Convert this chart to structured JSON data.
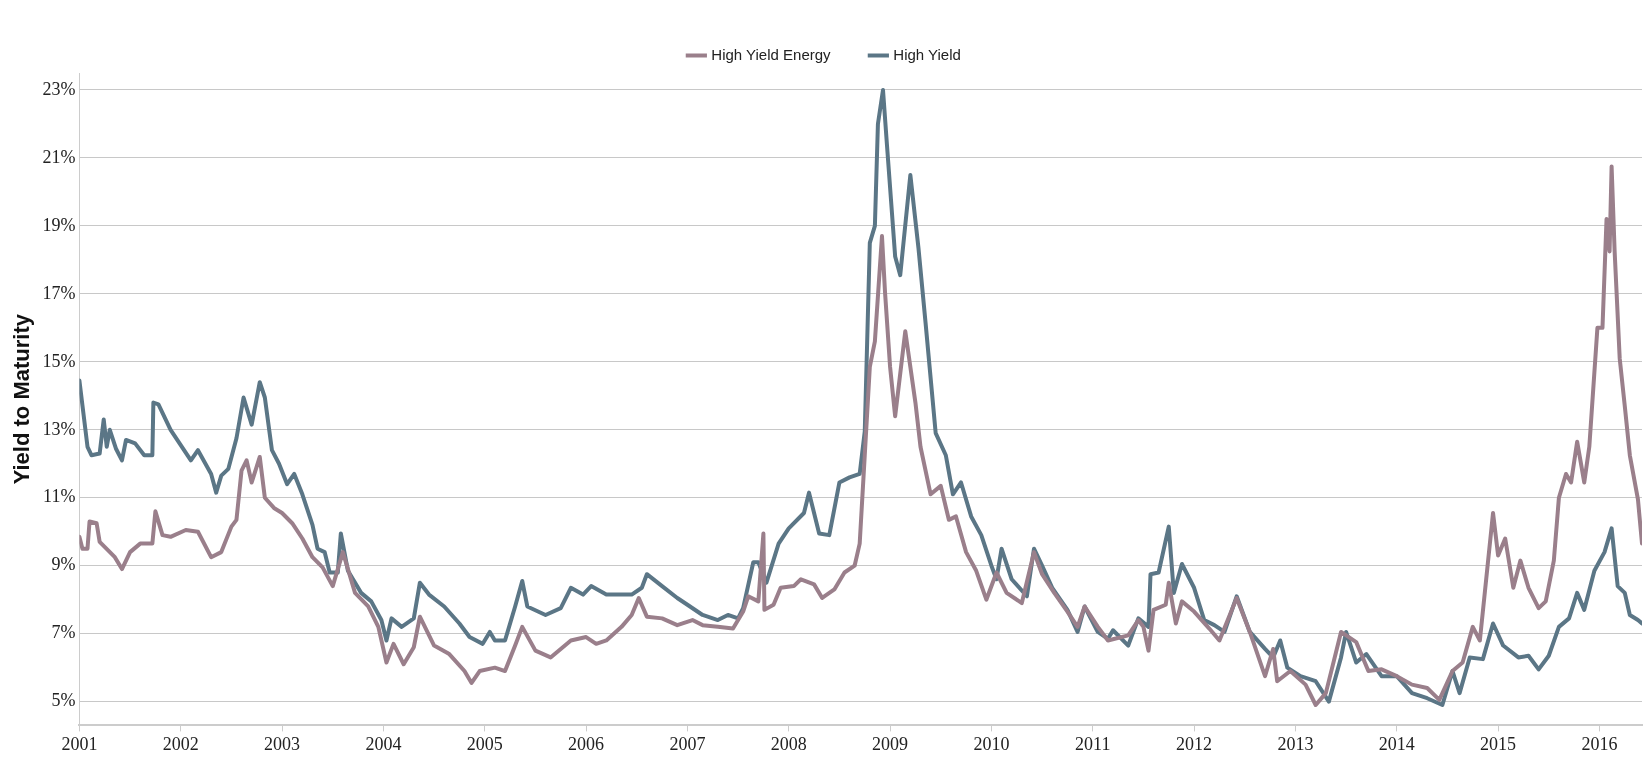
{
  "chart_data": {
    "type": "line",
    "ylabel": "Yield to Maturity",
    "legend": "top",
    "grid": "y",
    "marker": "none",
    "line_style": "solid",
    "xlim": [
      2001,
      2016.42
    ],
    "xticks": [
      2001,
      2002,
      2003,
      2004,
      2005,
      2006,
      2007,
      2008,
      2009,
      2010,
      2011,
      2012,
      2013,
      2014,
      2015,
      2016
    ],
    "ylim": [
      4.3,
      23.5
    ],
    "yticks": [
      {
        "value": 5,
        "label": "5%"
      },
      {
        "value": 7,
        "label": "7%"
      },
      {
        "value": 9,
        "label": "9%"
      },
      {
        "value": 11,
        "label": "11%"
      },
      {
        "value": 13,
        "label": "13%"
      },
      {
        "value": 15,
        "label": "15%"
      },
      {
        "value": 17,
        "label": "17%"
      },
      {
        "value": 19,
        "label": "19%"
      },
      {
        "value": 21,
        "label": "21%"
      },
      {
        "value": 23,
        "label": "23%"
      }
    ],
    "series": [
      {
        "name": "High Yield Energy",
        "color": "#9a7f8b",
        "x": [
          2001,
          2001.03,
          2001.08,
          2001.1,
          2001.17,
          2001.2,
          2001.35,
          2001.42,
          2001.5,
          2001.6,
          2001.72,
          2001.75,
          2001.82,
          2001.9,
          2002.05,
          2002.17,
          2002.3,
          2002.4,
          2002.5,
          2002.55,
          2002.6,
          2002.65,
          2002.7,
          2002.78,
          2002.83,
          2002.92,
          2003,
          2003.1,
          2003.2,
          2003.3,
          2003.4,
          2003.5,
          2003.6,
          2003.72,
          2003.85,
          2003.95,
          2004.03,
          2004.1,
          2004.2,
          2004.3,
          2004.36,
          2004.5,
          2004.65,
          2004.8,
          2004.87,
          2004.95,
          2005.1,
          2005.2,
          2005.3,
          2005.37,
          2005.5,
          2005.65,
          2005.85,
          2006,
          2006.1,
          2006.2,
          2006.35,
          2006.45,
          2006.52,
          2006.6,
          2006.75,
          2006.9,
          2007.05,
          2007.15,
          2007.3,
          2007.45,
          2007.55,
          2007.6,
          2007.7,
          2007.75,
          2007.76,
          2007.85,
          2007.92,
          2008.05,
          2008.12,
          2008.25,
          2008.33,
          2008.45,
          2008.55,
          2008.65,
          2008.7,
          2008.75,
          2008.8,
          2008.85,
          2008.92,
          2008.95,
          2009,
          2009.05,
          2009.15,
          2009.25,
          2009.3,
          2009.4,
          2009.5,
          2009.58,
          2009.65,
          2009.75,
          2009.85,
          2009.95,
          2010.05,
          2010.15,
          2010.3,
          2010.42,
          2010.5,
          2010.62,
          2010.75,
          2010.85,
          2010.92,
          2011.05,
          2011.15,
          2011.35,
          2011.45,
          2011.5,
          2011.55,
          2011.6,
          2011.72,
          2011.75,
          2011.82,
          2011.88,
          2012,
          2012.15,
          2012.25,
          2012.42,
          2012.55,
          2012.7,
          2012.78,
          2012.82,
          2012.95,
          2013.1,
          2013.2,
          2013.3,
          2013.45,
          2013.6,
          2013.72,
          2013.85,
          2014,
          2014.15,
          2014.3,
          2014.42,
          2014.55,
          2014.65,
          2014.75,
          2014.82,
          2014.95,
          2015,
          2015.07,
          2015.15,
          2015.22,
          2015.3,
          2015.4,
          2015.47,
          2015.55,
          2015.6,
          2015.67,
          2015.72,
          2015.78,
          2015.85,
          2015.9,
          2015.98,
          2016.03,
          2016.07,
          2016.1,
          2016.12,
          2016.15,
          2016.2,
          2016.25,
          2016.3,
          2016.38,
          2016.42
        ],
        "values": [
          9.85,
          9.5,
          9.5,
          10.3,
          10.25,
          9.7,
          9.25,
          8.9,
          9.4,
          9.65,
          9.65,
          10.6,
          9.9,
          9.85,
          10.05,
          10,
          9.25,
          9.4,
          10.15,
          10.35,
          11.8,
          12.1,
          11.45,
          12.2,
          11,
          10.7,
          10.55,
          10.25,
          9.8,
          9.25,
          8.95,
          8.4,
          9.4,
          8.2,
          7.8,
          7.2,
          6.15,
          6.7,
          6.1,
          6.6,
          7.5,
          6.65,
          6.4,
          5.9,
          5.55,
          5.9,
          6,
          5.9,
          6.65,
          7.2,
          6.5,
          6.3,
          6.8,
          6.9,
          6.7,
          6.8,
          7.2,
          7.55,
          8.05,
          7.5,
          7.45,
          7.25,
          7.4,
          7.25,
          7.2,
          7.15,
          7.65,
          8.1,
          7.95,
          9.95,
          7.7,
          7.85,
          8.35,
          8.4,
          8.6,
          8.45,
          8.05,
          8.3,
          8.8,
          9,
          9.65,
          12.25,
          14.85,
          15.6,
          18.7,
          17.05,
          14.85,
          13.4,
          15.9,
          13.8,
          12.5,
          11.1,
          11.35,
          10.35,
          10.45,
          9.4,
          8.85,
          8,
          8.8,
          8.2,
          7.9,
          9.4,
          8.75,
          8.2,
          7.65,
          7.2,
          7.8,
          7.2,
          6.8,
          6.95,
          7.4,
          7.2,
          6.5,
          7.7,
          7.85,
          8.5,
          7.3,
          7.95,
          7.65,
          7.15,
          6.8,
          8.05,
          7.05,
          5.75,
          6.55,
          5.6,
          5.9,
          5.5,
          4.9,
          5.25,
          7.05,
          6.75,
          5.9,
          5.95,
          5.75,
          5.5,
          5.4,
          5.05,
          5.9,
          6.15,
          7.2,
          6.8,
          10.55,
          9.3,
          9.8,
          8.35,
          9.15,
          8.35,
          7.75,
          7.95,
          9.15,
          11,
          11.7,
          11.45,
          12.65,
          11.45,
          12.5,
          16,
          16,
          19.2,
          18.25,
          20.75,
          18.25,
          15.1,
          13.7,
          12.25,
          10.95,
          9.65
        ]
      },
      {
        "name": "High Yield",
        "color": "#5b7686",
        "x": [
          2001,
          2001.08,
          2001.12,
          2001.2,
          2001.24,
          2001.27,
          2001.3,
          2001.36,
          2001.42,
          2001.46,
          2001.55,
          2001.64,
          2001.72,
          2001.73,
          2001.78,
          2001.9,
          2002.1,
          2002.17,
          2002.3,
          2002.35,
          2002.4,
          2002.47,
          2002.55,
          2002.62,
          2002.66,
          2002.7,
          2002.78,
          2002.83,
          2002.9,
          2002.97,
          2003.05,
          2003.12,
          2003.2,
          2003.3,
          2003.35,
          2003.42,
          2003.47,
          2003.55,
          2003.58,
          2003.65,
          2003.78,
          2003.88,
          2003.98,
          2004.03,
          2004.08,
          2004.18,
          2004.3,
          2004.36,
          2004.45,
          2004.6,
          2004.75,
          2004.85,
          2004.98,
          2005.05,
          2005.1,
          2005.2,
          2005.3,
          2005.37,
          2005.42,
          2005.6,
          2005.75,
          2005.85,
          2005.97,
          2006.05,
          2006.2,
          2006.35,
          2006.45,
          2006.55,
          2006.6,
          2006.75,
          2006.9,
          2007,
          2007.15,
          2007.3,
          2007.4,
          2007.5,
          2007.55,
          2007.65,
          2007.7,
          2007.78,
          2007.9,
          2008,
          2008.15,
          2008.2,
          2008.3,
          2008.4,
          2008.5,
          2008.6,
          2008.7,
          2008.75,
          2008.8,
          2008.85,
          2008.88,
          2008.93,
          2008.97,
          2009.05,
          2009.1,
          2009.2,
          2009.28,
          2009.35,
          2009.45,
          2009.55,
          2009.62,
          2009.7,
          2009.8,
          2009.9,
          2010,
          2010.05,
          2010.1,
          2010.2,
          2010.35,
          2010.42,
          2010.5,
          2010.6,
          2010.75,
          2010.85,
          2010.92,
          2011.05,
          2011.15,
          2011.2,
          2011.35,
          2011.45,
          2011.55,
          2011.57,
          2011.65,
          2011.75,
          2011.8,
          2011.88,
          2012,
          2012.1,
          2012.2,
          2012.3,
          2012.42,
          2012.55,
          2012.7,
          2012.78,
          2012.85,
          2012.92,
          2013.05,
          2013.2,
          2013.33,
          2013.45,
          2013.5,
          2013.6,
          2013.7,
          2013.85,
          2014,
          2014.15,
          2014.3,
          2014.45,
          2014.55,
          2014.62,
          2014.72,
          2014.85,
          2014.95,
          2015.05,
          2015.2,
          2015.3,
          2015.4,
          2015.5,
          2015.6,
          2015.7,
          2015.78,
          2015.85,
          2015.95,
          2016.05,
          2016.12,
          2016.18,
          2016.25,
          2016.3,
          2016.38,
          2016.42
        ],
        "values": [
          14.45,
          12.5,
          12.25,
          12.3,
          13.3,
          12.5,
          13,
          12.45,
          12.1,
          12.7,
          12.6,
          12.25,
          12.25,
          13.8,
          13.75,
          13,
          12.1,
          12.4,
          11.7,
          11.15,
          11.65,
          11.85,
          12.75,
          13.95,
          13.55,
          13.15,
          14.4,
          13.95,
          12.4,
          12,
          11.4,
          11.7,
          11.1,
          10.2,
          9.5,
          9.4,
          8.8,
          8.8,
          9.95,
          8.85,
          8.2,
          7.95,
          7.4,
          6.8,
          7.45,
          7.2,
          7.45,
          8.5,
          8.15,
          7.8,
          7.3,
          6.9,
          6.7,
          7.05,
          6.8,
          6.8,
          7.8,
          8.55,
          7.8,
          7.55,
          7.75,
          8.35,
          8.15,
          8.4,
          8.15,
          8.15,
          8.15,
          8.35,
          8.75,
          8.4,
          8.05,
          7.85,
          7.55,
          7.4,
          7.55,
          7.45,
          7.75,
          9.1,
          9.1,
          8.5,
          9.65,
          10.1,
          10.55,
          11.15,
          9.95,
          9.9,
          11.45,
          11.6,
          11.7,
          12.95,
          18.5,
          19,
          22,
          23,
          21.35,
          18.1,
          17.55,
          20.5,
          18.35,
          16.15,
          12.9,
          12.25,
          11.1,
          11.45,
          10.45,
          9.9,
          9,
          8.6,
          9.5,
          8.6,
          8.1,
          9.5,
          9,
          8.35,
          7.7,
          7.05,
          7.8,
          7.05,
          6.85,
          7.1,
          6.65,
          7.45,
          7.2,
          8.75,
          8.8,
          10.15,
          8.2,
          9.05,
          8.35,
          7.4,
          7.25,
          7.05,
          8.1,
          7.05,
          6.55,
          6.3,
          6.8,
          6,
          5.75,
          5.6,
          5,
          6.3,
          7.05,
          6.15,
          6.4,
          5.75,
          5.75,
          5.25,
          5.1,
          4.9,
          5.9,
          5.25,
          6.3,
          6.25,
          7.3,
          6.65,
          6.3,
          6.35,
          5.95,
          6.35,
          7.2,
          7.45,
          8.2,
          7.7,
          8.85,
          9.4,
          10.1,
          8.4,
          8.2,
          7.55,
          7.4,
          7.3
        ]
      }
    ]
  }
}
